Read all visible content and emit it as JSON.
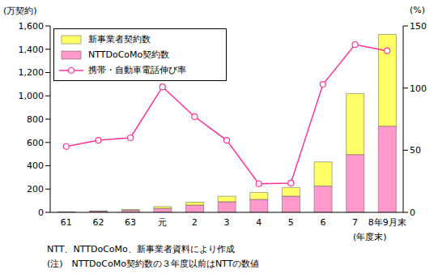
{
  "chart_data": {
    "type": "bar",
    "stacked": true,
    "categories": [
      "61",
      "62",
      "63",
      "元",
      "2",
      "3",
      "4",
      "5",
      "6",
      "7",
      "8年9月末"
    ],
    "series": [
      {
        "name": "新事業者契約数",
        "type": "bar",
        "color": "#ffff66",
        "values": [
          0,
          2,
          6,
          15,
          25,
          47,
          60,
          74,
          207,
          524,
          787
        ]
      },
      {
        "name": "NTTDoCoMo契約数",
        "type": "bar",
        "color": "#ff99cc",
        "values": [
          5,
          10,
          18,
          34,
          62,
          91,
          111,
          139,
          226,
          496,
          740
        ]
      },
      {
        "name": "携帯・自動車電話伸び率",
        "type": "line",
        "axis": "y2",
        "color": "#ff3399",
        "marker": "circle",
        "values": [
          53,
          58,
          60,
          101,
          77,
          58,
          23,
          23.5,
          103,
          135,
          130
        ]
      }
    ],
    "ylim": [
      0,
      1600
    ],
    "yticks": [
      0,
      200,
      400,
      600,
      800,
      {
        "value": 1000,
        "label": "1,000"
      },
      {
        "value": 1200,
        "label": "1,200"
      },
      {
        "value": 1400,
        "label": "1,400"
      },
      {
        "value": 1600,
        "label": "1,600"
      }
    ],
    "y2lim": [
      0,
      150
    ],
    "y2ticks": [
      0,
      50,
      100,
      150
    ],
    "y_label": "(万契約)",
    "y2_label": "(%)",
    "annotations": [
      "(年度末)",
      "NTT、NTTDoCoMo、新事業者資料により作成",
      "(注)　NTTDoCoMo契約数の３年度以前はNTTの数値"
    ],
    "legend": "upper left",
    "grid": false
  }
}
